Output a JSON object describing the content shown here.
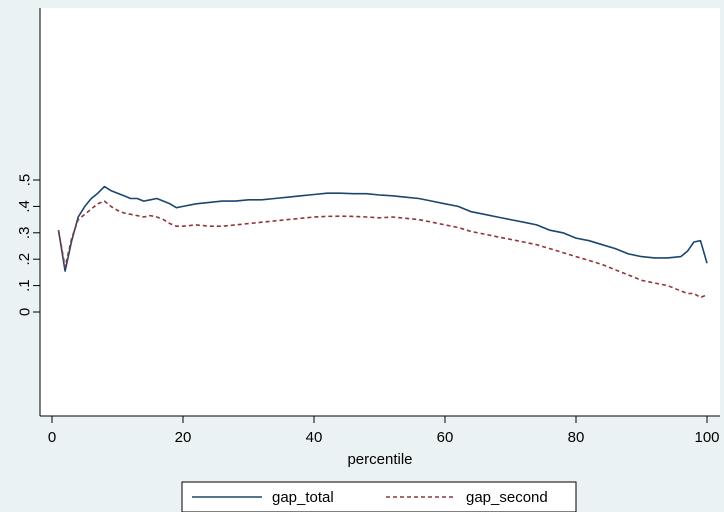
{
  "chart_data": {
    "type": "line",
    "title": "",
    "xlabel": "percentile",
    "ylabel": "",
    "xlim": [
      0,
      100
    ],
    "ylim": [
      -0.3,
      0.9
    ],
    "grid": false,
    "legend_position": "bottom",
    "x_ticks": [
      0,
      20,
      40,
      60,
      80,
      100
    ],
    "x_tick_labels": [
      "0",
      "20",
      "40",
      "60",
      "80",
      "100"
    ],
    "y_ticks": [
      0,
      0.1,
      0.2,
      0.3,
      0.4,
      0.5
    ],
    "y_tick_labels": [
      "0",
      ".1",
      ".2",
      ".3",
      ".4",
      ".5"
    ],
    "series": [
      {
        "name": "gap_total",
        "color": "#1a476f",
        "style": "solid",
        "x": [
          1,
          2,
          3,
          4,
          5,
          6,
          7,
          8,
          9,
          10,
          11,
          12,
          13,
          14,
          15,
          16,
          17,
          18,
          19,
          20,
          22,
          24,
          26,
          28,
          30,
          32,
          34,
          36,
          38,
          40,
          42,
          44,
          46,
          48,
          50,
          52,
          54,
          56,
          58,
          60,
          62,
          64,
          66,
          68,
          70,
          72,
          74,
          76,
          78,
          80,
          82,
          84,
          86,
          88,
          90,
          92,
          94,
          96,
          97,
          98,
          99,
          100
        ],
        "y": [
          0.31,
          0.155,
          0.27,
          0.36,
          0.4,
          0.43,
          0.45,
          0.475,
          0.46,
          0.45,
          0.44,
          0.43,
          0.43,
          0.42,
          0.425,
          0.43,
          0.42,
          0.41,
          0.395,
          0.4,
          0.41,
          0.415,
          0.42,
          0.42,
          0.425,
          0.425,
          0.43,
          0.435,
          0.44,
          0.445,
          0.45,
          0.45,
          0.448,
          0.448,
          0.443,
          0.44,
          0.435,
          0.43,
          0.42,
          0.41,
          0.4,
          0.38,
          0.37,
          0.36,
          0.35,
          0.34,
          0.33,
          0.31,
          0.3,
          0.28,
          0.27,
          0.255,
          0.24,
          0.22,
          0.21,
          0.205,
          0.205,
          0.21,
          0.23,
          0.265,
          0.27,
          0.185
        ]
      },
      {
        "name": "gap_second",
        "color": "#90353b",
        "style": "dashed",
        "x": [
          1,
          2,
          3,
          4,
          5,
          6,
          7,
          8,
          9,
          10,
          11,
          12,
          13,
          14,
          15,
          16,
          17,
          18,
          19,
          20,
          22,
          24,
          26,
          28,
          30,
          32,
          34,
          36,
          38,
          40,
          42,
          44,
          46,
          48,
          50,
          52,
          54,
          56,
          58,
          60,
          62,
          64,
          66,
          68,
          70,
          72,
          74,
          76,
          78,
          80,
          82,
          84,
          86,
          88,
          90,
          92,
          94,
          96,
          97,
          98,
          99,
          100
        ],
        "y": [
          0.31,
          0.17,
          0.28,
          0.35,
          0.37,
          0.39,
          0.41,
          0.42,
          0.4,
          0.385,
          0.375,
          0.37,
          0.365,
          0.36,
          0.365,
          0.36,
          0.35,
          0.335,
          0.325,
          0.325,
          0.33,
          0.325,
          0.325,
          0.33,
          0.335,
          0.34,
          0.345,
          0.35,
          0.355,
          0.36,
          0.362,
          0.363,
          0.362,
          0.36,
          0.357,
          0.36,
          0.355,
          0.35,
          0.34,
          0.33,
          0.32,
          0.305,
          0.295,
          0.285,
          0.275,
          0.265,
          0.255,
          0.24,
          0.225,
          0.21,
          0.195,
          0.18,
          0.16,
          0.14,
          0.12,
          0.11,
          0.1,
          0.08,
          0.07,
          0.07,
          0.055,
          0.065
        ]
      }
    ]
  }
}
